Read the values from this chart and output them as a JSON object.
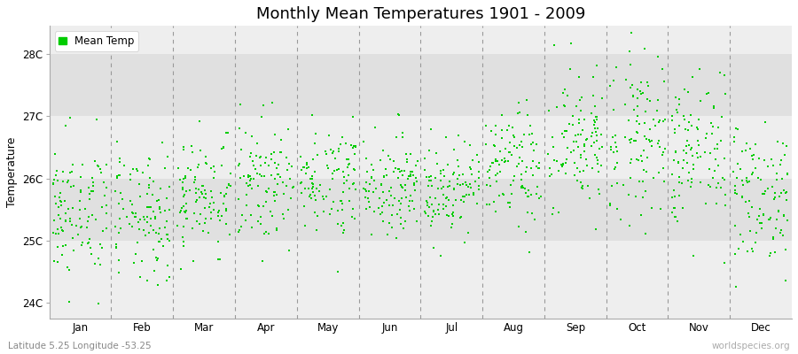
{
  "title": "Monthly Mean Temperatures 1901 - 2009",
  "ylabel": "Temperature",
  "xlabel_labels": [
    "Jan",
    "Feb",
    "Mar",
    "Apr",
    "May",
    "Jun",
    "Jul",
    "Aug",
    "Sep",
    "Oct",
    "Nov",
    "Dec"
  ],
  "ytick_labels": [
    "24C",
    "25C",
    "26C",
    "27C",
    "28C"
  ],
  "ytick_positions": [
    24,
    25,
    26,
    27,
    28
  ],
  "ylim": [
    23.75,
    28.45
  ],
  "xlim": [
    0,
    12
  ],
  "dot_color": "#00CC00",
  "dot_size": 2.5,
  "dot_marker": "s",
  "bg_light": "#eeeeee",
  "bg_dark": "#e0e0e0",
  "legend_label": "Mean Temp",
  "subtitle": "Latitude 5.25 Longitude -53.25",
  "watermark": "worldspecies.org",
  "title_fontsize": 13,
  "label_fontsize": 9,
  "tick_fontsize": 8.5,
  "dashed_line_color": "#999999",
  "monthly_means": [
    25.45,
    25.35,
    25.75,
    25.95,
    26.0,
    25.9,
    25.85,
    26.15,
    26.55,
    26.75,
    26.4,
    25.75
  ],
  "monthly_stds": [
    0.55,
    0.52,
    0.48,
    0.48,
    0.43,
    0.38,
    0.38,
    0.48,
    0.6,
    0.68,
    0.62,
    0.58
  ],
  "n_years": 109
}
